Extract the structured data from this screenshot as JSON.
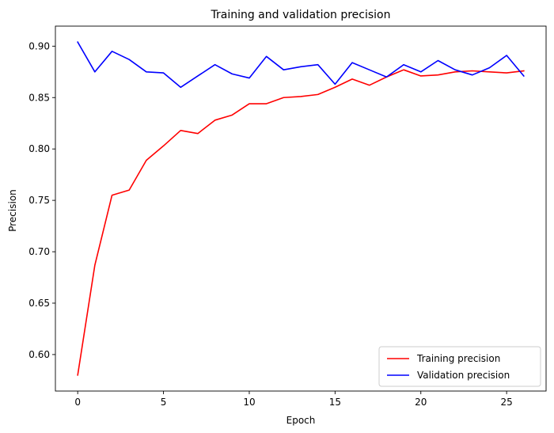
{
  "chart_data": {
    "type": "line",
    "title": "Training and validation precision",
    "xlabel": "Epoch",
    "ylabel": "Precision",
    "xlim": [
      -1.3,
      27.3
    ],
    "ylim": [
      0.5645,
      0.9195
    ],
    "xticks": [
      0,
      5,
      10,
      15,
      20,
      25
    ],
    "yticks": [
      0.6,
      0.65,
      0.7,
      0.75,
      0.8,
      0.85,
      0.9
    ],
    "xtick_labels": [
      "0",
      "5",
      "10",
      "15",
      "20",
      "25"
    ],
    "ytick_labels": [
      "0.60",
      "0.65",
      "0.70",
      "0.75",
      "0.80",
      "0.85",
      "0.90"
    ],
    "grid": false,
    "legend_position": "lower-right",
    "x": [
      0,
      1,
      2,
      3,
      4,
      5,
      6,
      7,
      8,
      9,
      10,
      11,
      12,
      13,
      14,
      15,
      16,
      17,
      18,
      19,
      20,
      21,
      22,
      23,
      24,
      25,
      26
    ],
    "series": [
      {
        "name": "Training precision",
        "color": "#ff0000",
        "values": [
          0.58,
          0.687,
          0.755,
          0.76,
          0.789,
          0.803,
          0.818,
          0.815,
          0.828,
          0.833,
          0.844,
          0.844,
          0.85,
          0.851,
          0.853,
          0.86,
          0.868,
          0.862,
          0.87,
          0.877,
          0.871,
          0.872,
          0.875,
          0.876,
          0.875,
          0.874,
          0.876
        ]
      },
      {
        "name": "Validation precision",
        "color": "#0000ff",
        "values": [
          0.904,
          0.875,
          0.895,
          0.887,
          0.875,
          0.874,
          0.86,
          0.871,
          0.882,
          0.873,
          0.869,
          0.89,
          0.877,
          0.88,
          0.882,
          0.863,
          0.884,
          0.877,
          0.87,
          0.882,
          0.875,
          0.886,
          0.877,
          0.872,
          0.879,
          0.891,
          0.871
        ]
      }
    ]
  }
}
